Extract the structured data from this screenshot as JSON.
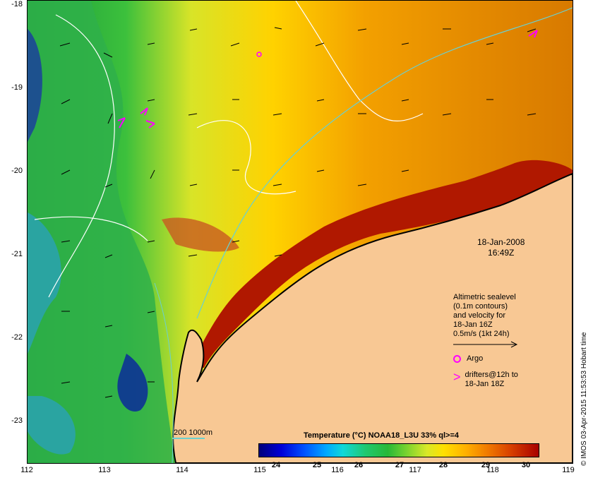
{
  "map": {
    "type": "sea surface temperature satellite map",
    "region": "NW Australian shelf",
    "y_ticks": [
      "-18",
      "-19",
      "-20",
      "-21",
      "-22",
      "-23"
    ],
    "x_ticks": [
      "112",
      "113",
      "114",
      "115",
      "116",
      "117",
      "118",
      "119"
    ]
  },
  "datetime": {
    "date": "18-Jan-2008",
    "time": "16:49Z"
  },
  "legend": {
    "line1": "Altimetric sealevel",
    "line2": "(0.1m contours)",
    "line3": "and velocity for",
    "line4": "18-Jan 16Z",
    "line5": "0.5m/s (1kt 24h)",
    "argo": "Argo",
    "drifters1": "drifters@12h to",
    "drifters2": "18-Jan 18Z"
  },
  "contour_key": "200  1000m",
  "colorbar": {
    "title": "Temperature (°C) NOAA18_L3U 33% ql>=4",
    "ticks": [
      "24",
      "25",
      "26",
      "27",
      "28",
      "29",
      "30"
    ]
  },
  "credit": "© IMOS 03-Apr-2015 11:53:53 Hobart time",
  "colors": {
    "land": "#f4c08a",
    "drifter": "#ff00ff",
    "contour_isobath": "#6ad0d0",
    "contour_sealevel": "#ffffff"
  }
}
